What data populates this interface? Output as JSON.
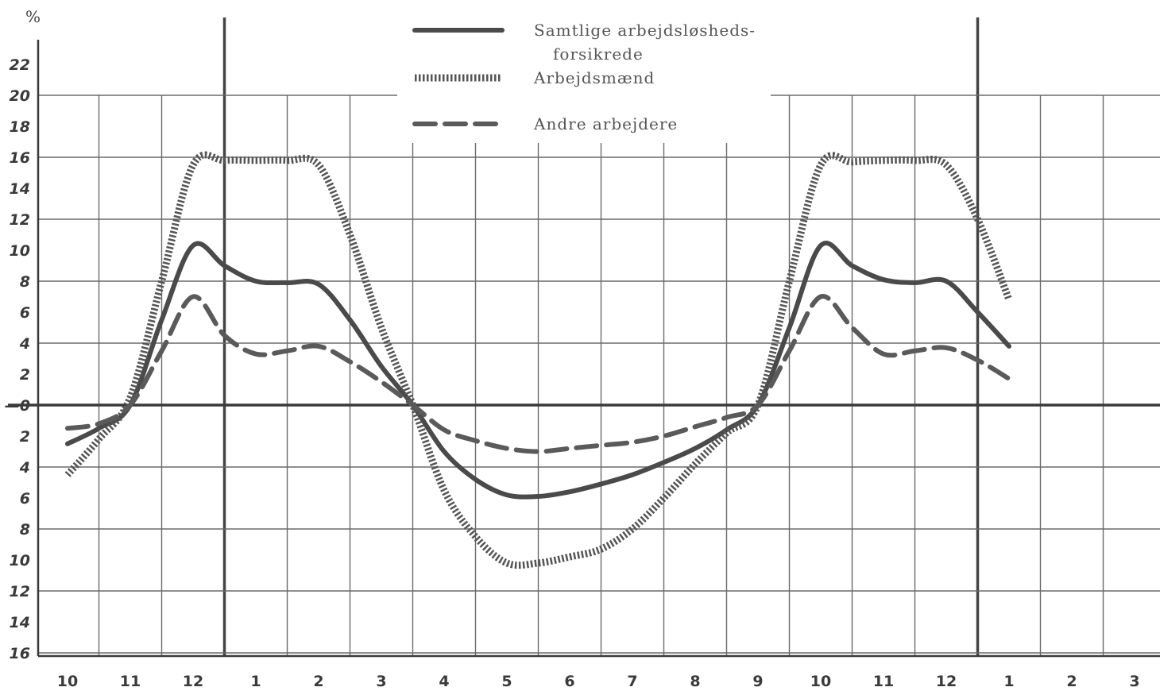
{
  "chart_data": {
    "type": "line",
    "title": "",
    "xlabel": "",
    "ylabel": "%",
    "ylim": [
      -16,
      22
    ],
    "y_ticks": [
      {
        "label": "22",
        "value": 22
      },
      {
        "label": "20",
        "value": 20
      },
      {
        "label": "18",
        "value": 18
      },
      {
        "label": "16",
        "value": 16
      },
      {
        "label": "14",
        "value": 14
      },
      {
        "label": "12",
        "value": 12
      },
      {
        "label": "10",
        "value": 10
      },
      {
        "label": "8",
        "value": 8
      },
      {
        "label": "6",
        "value": 6
      },
      {
        "label": "4",
        "value": 4
      },
      {
        "label": "2",
        "value": 2
      },
      {
        "label": "—0",
        "value": 0
      },
      {
        "label": "2",
        "value": -2
      },
      {
        "label": "4",
        "value": -4
      },
      {
        "label": "6",
        "value": -6
      },
      {
        "label": "8",
        "value": -8
      },
      {
        "label": "10",
        "value": -10
      },
      {
        "label": "12",
        "value": -12
      },
      {
        "label": "14",
        "value": -14
      },
      {
        "label": "16",
        "value": -16
      }
    ],
    "categories": [
      "10",
      "11",
      "12",
      "1",
      "2",
      "3",
      "4",
      "5",
      "6",
      "7",
      "8",
      "9",
      "10",
      "11",
      "12",
      "1",
      "2",
      "3"
    ],
    "grid": true,
    "legend_position": "top-center",
    "series": [
      {
        "name": "Samtlige arbejdsløsheds-\nforsikrede",
        "style": "solid",
        "color": "#4a4a4a",
        "points": [
          [
            0,
            -2.5
          ],
          [
            0.5,
            -1.5
          ],
          [
            1,
            0
          ],
          [
            1.5,
            5.5
          ],
          [
            2,
            10.3
          ],
          [
            2.5,
            9
          ],
          [
            3,
            8
          ],
          [
            3.5,
            7.9
          ],
          [
            4,
            7.8
          ],
          [
            4.5,
            5.5
          ],
          [
            5,
            2.5
          ],
          [
            5.5,
            0
          ],
          [
            6,
            -3
          ],
          [
            6.5,
            -4.8
          ],
          [
            7,
            -5.8
          ],
          [
            7.5,
            -5.9
          ],
          [
            8,
            -5.6
          ],
          [
            8.5,
            -5.1
          ],
          [
            9,
            -4.5
          ],
          [
            9.5,
            -3.7
          ],
          [
            10,
            -2.8
          ],
          [
            10.5,
            -1.6
          ],
          [
            11,
            0
          ],
          [
            11.5,
            5
          ],
          [
            12,
            10.3
          ],
          [
            12.5,
            9
          ],
          [
            13,
            8.1
          ],
          [
            13.5,
            7.9
          ],
          [
            14,
            8
          ],
          [
            14.5,
            6
          ],
          [
            15,
            3.8
          ]
        ]
      },
      {
        "name": "Arbejdsmænd",
        "style": "dotted",
        "color": "#555555",
        "points": [
          [
            0,
            -4.5
          ],
          [
            0.5,
            -2.2
          ],
          [
            1,
            0.5
          ],
          [
            1.5,
            8
          ],
          [
            2,
            15.5
          ],
          [
            2.5,
            15.8
          ],
          [
            3,
            15.8
          ],
          [
            3.5,
            15.8
          ],
          [
            4,
            15.5
          ],
          [
            4.5,
            11
          ],
          [
            5,
            5
          ],
          [
            5.5,
            0
          ],
          [
            6,
            -5.5
          ],
          [
            6.5,
            -8.5
          ],
          [
            7,
            -10.2
          ],
          [
            7.5,
            -10.2
          ],
          [
            8,
            -9.8
          ],
          [
            8.5,
            -9.3
          ],
          [
            9,
            -8
          ],
          [
            9.5,
            -6
          ],
          [
            10,
            -3.8
          ],
          [
            10.5,
            -1.8
          ],
          [
            11,
            0
          ],
          [
            11.5,
            8
          ],
          [
            12,
            15.5
          ],
          [
            12.5,
            15.7
          ],
          [
            13,
            15.8
          ],
          [
            13.5,
            15.8
          ],
          [
            14,
            15.5
          ],
          [
            14.5,
            12
          ],
          [
            15,
            6.8
          ]
        ]
      },
      {
        "name": "Andre arbejdere",
        "style": "dashed",
        "color": "#5a5a5a",
        "points": [
          [
            0,
            -1.5
          ],
          [
            0.5,
            -1.2
          ],
          [
            1,
            0
          ],
          [
            1.5,
            3.5
          ],
          [
            2,
            7
          ],
          [
            2.5,
            4.5
          ],
          [
            3,
            3.3
          ],
          [
            3.5,
            3.5
          ],
          [
            4,
            3.8
          ],
          [
            4.5,
            2.8
          ],
          [
            5,
            1.5
          ],
          [
            5.5,
            0
          ],
          [
            6,
            -1.6
          ],
          [
            6.5,
            -2.3
          ],
          [
            7,
            -2.8
          ],
          [
            7.5,
            -3
          ],
          [
            8,
            -2.8
          ],
          [
            8.5,
            -2.6
          ],
          [
            9,
            -2.4
          ],
          [
            9.5,
            -2
          ],
          [
            10,
            -1.4
          ],
          [
            10.5,
            -0.8
          ],
          [
            11,
            0
          ],
          [
            11.5,
            3.5
          ],
          [
            12,
            7
          ],
          [
            12.5,
            5
          ],
          [
            13,
            3.3
          ],
          [
            13.5,
            3.5
          ],
          [
            14,
            3.7
          ],
          [
            14.5,
            2.9
          ],
          [
            15,
            1.7
          ]
        ]
      }
    ]
  }
}
